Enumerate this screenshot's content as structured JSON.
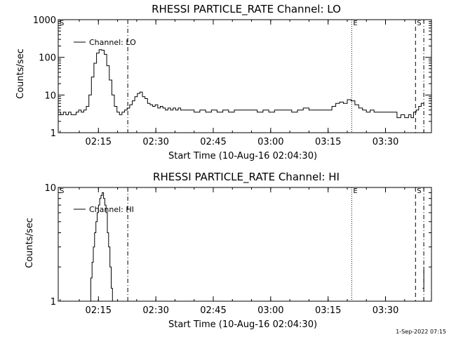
{
  "footer_timestamp": "1-Sep-2022 07:15",
  "chart_data": [
    {
      "type": "line",
      "title": "RHESSI PARTICLE_RATE Channel: LO",
      "xlabel": "Start Time (10-Aug-16 02:04:30)",
      "ylabel": "Counts/sec",
      "y_scale": "log",
      "xlim": [
        "02:04:30",
        "03:42:00"
      ],
      "ylim": [
        1,
        1000
      ],
      "x_ticks": [
        "02:15",
        "02:30",
        "02:45",
        "03:00",
        "03:15",
        "03:30"
      ],
      "y_ticks": [
        "1",
        "10",
        "100",
        "1000"
      ],
      "legend": {
        "placement": "top-left",
        "entries": [
          "Channel: LO"
        ]
      },
      "markers": [
        {
          "label": "S",
          "time": "02:04:30",
          "style": "solid"
        },
        {
          "label": "",
          "time": "02:22:40",
          "style": "dash-dot"
        },
        {
          "label": "E",
          "time": "03:21:10",
          "style": "dotted"
        },
        {
          "label": "S",
          "time": "03:37:50",
          "style": "dashed"
        },
        {
          "label": "",
          "time": "03:40:00",
          "style": "dash-dot"
        }
      ],
      "series": [
        {
          "name": "Channel: LO",
          "x": [
            "02:04:30",
            "02:05:10",
            "02:05:50",
            "02:06:30",
            "02:07:10",
            "02:07:50",
            "02:08:30",
            "02:09:10",
            "02:09:50",
            "02:10:30",
            "02:11:10",
            "02:11:50",
            "02:12:30",
            "02:13:10",
            "02:13:50",
            "02:14:30",
            "02:15:10",
            "02:15:50",
            "02:16:30",
            "02:17:10",
            "02:17:50",
            "02:18:30",
            "02:19:10",
            "02:19:50",
            "02:20:30",
            "02:21:10",
            "02:21:50",
            "02:22:30",
            "02:23:10",
            "02:23:50",
            "02:24:30",
            "02:25:10",
            "02:25:50",
            "02:26:30",
            "02:27:10",
            "02:27:50",
            "02:28:30",
            "02:29:10",
            "02:29:50",
            "02:30:30",
            "02:31:10",
            "02:31:50",
            "02:32:30",
            "02:33:10",
            "02:33:50",
            "02:34:30",
            "02:35:10",
            "02:35:50",
            "02:36:30",
            "02:37:10",
            "02:38:30",
            "02:40:00",
            "02:41:30",
            "02:43:00",
            "02:44:30",
            "02:46:00",
            "02:47:30",
            "02:49:00",
            "02:50:30",
            "02:52:00",
            "02:53:30",
            "02:55:00",
            "02:56:30",
            "02:58:00",
            "02:59:30",
            "03:01:00",
            "03:02:30",
            "03:04:00",
            "03:05:30",
            "03:07:00",
            "03:08:30",
            "03:10:00",
            "03:11:30",
            "03:13:00",
            "03:14:00",
            "03:15:00",
            "03:16:00",
            "03:17:00",
            "03:18:00",
            "03:19:00",
            "03:20:00",
            "03:21:00",
            "03:22:00",
            "03:23:00",
            "03:24:00",
            "03:25:00",
            "03:26:00",
            "03:27:00",
            "03:28:00",
            "03:29:00",
            "03:30:00",
            "03:31:00",
            "03:32:00",
            "03:33:00",
            "03:34:00",
            "03:35:00",
            "03:36:00",
            "03:36:40",
            "03:37:20",
            "03:38:00",
            "03:38:40",
            "03:39:20",
            "03:40:00"
          ],
          "y": [
            3.5,
            3.0,
            3.5,
            3.0,
            3.5,
            3.0,
            3.0,
            3.5,
            4.0,
            3.5,
            4.0,
            5.0,
            10,
            30,
            70,
            130,
            160,
            155,
            120,
            60,
            25,
            10,
            5,
            3.5,
            3.0,
            3.5,
            4.0,
            4.5,
            5.5,
            7,
            9,
            11,
            12,
            9,
            8,
            6,
            5.5,
            5,
            5.5,
            4.5,
            5,
            4.5,
            4.0,
            4.5,
            4.0,
            4.5,
            4.0,
            4.5,
            4.0,
            4.0,
            4.0,
            3.5,
            4.0,
            3.5,
            4.0,
            3.5,
            4.0,
            3.5,
            4.0,
            4.0,
            4.0,
            4.0,
            3.5,
            4.0,
            3.5,
            4.0,
            4.0,
            4.0,
            3.5,
            4.0,
            4.5,
            4.0,
            4.0,
            4.0,
            4.0,
            4.0,
            5.0,
            6.0,
            6.5,
            6.0,
            7.5,
            7.0,
            5.5,
            4.5,
            4.0,
            3.5,
            4.0,
            3.5,
            3.5,
            3.5,
            3.5,
            3.5,
            3.5,
            2.5,
            3.0,
            2.5,
            3.0,
            2.5,
            3.5,
            4.0,
            5.0,
            6.0,
            6.0
          ]
        }
      ]
    },
    {
      "type": "line",
      "title": "RHESSI PARTICLE_RATE Channel: HI",
      "xlabel": "Start Time (10-Aug-16 02:04:30)",
      "ylabel": "Counts/sec",
      "y_scale": "log",
      "xlim": [
        "02:04:30",
        "03:42:00"
      ],
      "ylim": [
        1,
        10
      ],
      "x_ticks": [
        "02:15",
        "02:30",
        "02:45",
        "03:00",
        "03:15",
        "03:30"
      ],
      "y_ticks": [
        "1",
        "10"
      ],
      "legend": {
        "placement": "top-left",
        "entries": [
          "Channel: HI"
        ]
      },
      "markers": [
        {
          "label": "S",
          "time": "02:04:30",
          "style": "solid"
        },
        {
          "label": "",
          "time": "02:22:40",
          "style": "dash-dot"
        },
        {
          "label": "E",
          "time": "03:21:10",
          "style": "dotted"
        },
        {
          "label": "S",
          "time": "03:37:50",
          "style": "dashed"
        },
        {
          "label": "",
          "time": "03:40:00",
          "style": "dash-dot"
        }
      ],
      "series": [
        {
          "name": "Channel: HI",
          "segments": [
            {
              "x": [
                "02:12:40",
                "02:13:00",
                "02:13:20",
                "02:13:40",
                "02:14:00",
                "02:14:20",
                "02:14:40",
                "02:15:00",
                "02:15:20",
                "02:15:40",
                "02:16:00",
                "02:16:20",
                "02:16:40",
                "02:17:00",
                "02:17:20",
                "02:17:40",
                "02:18:00",
                "02:18:20",
                "02:18:40"
              ],
              "y": [
                1,
                1.6,
                2.2,
                3.0,
                4.0,
                5.0,
                6.0,
                7.0,
                8.0,
                8.5,
                9.0,
                8.0,
                7.0,
                6.0,
                4.0,
                3.0,
                2.0,
                1.3,
                1
              ]
            },
            {
              "x": [
                "03:39:40",
                "03:40:00"
              ],
              "y": [
                1.3,
                2.0
              ]
            }
          ]
        }
      ]
    }
  ]
}
